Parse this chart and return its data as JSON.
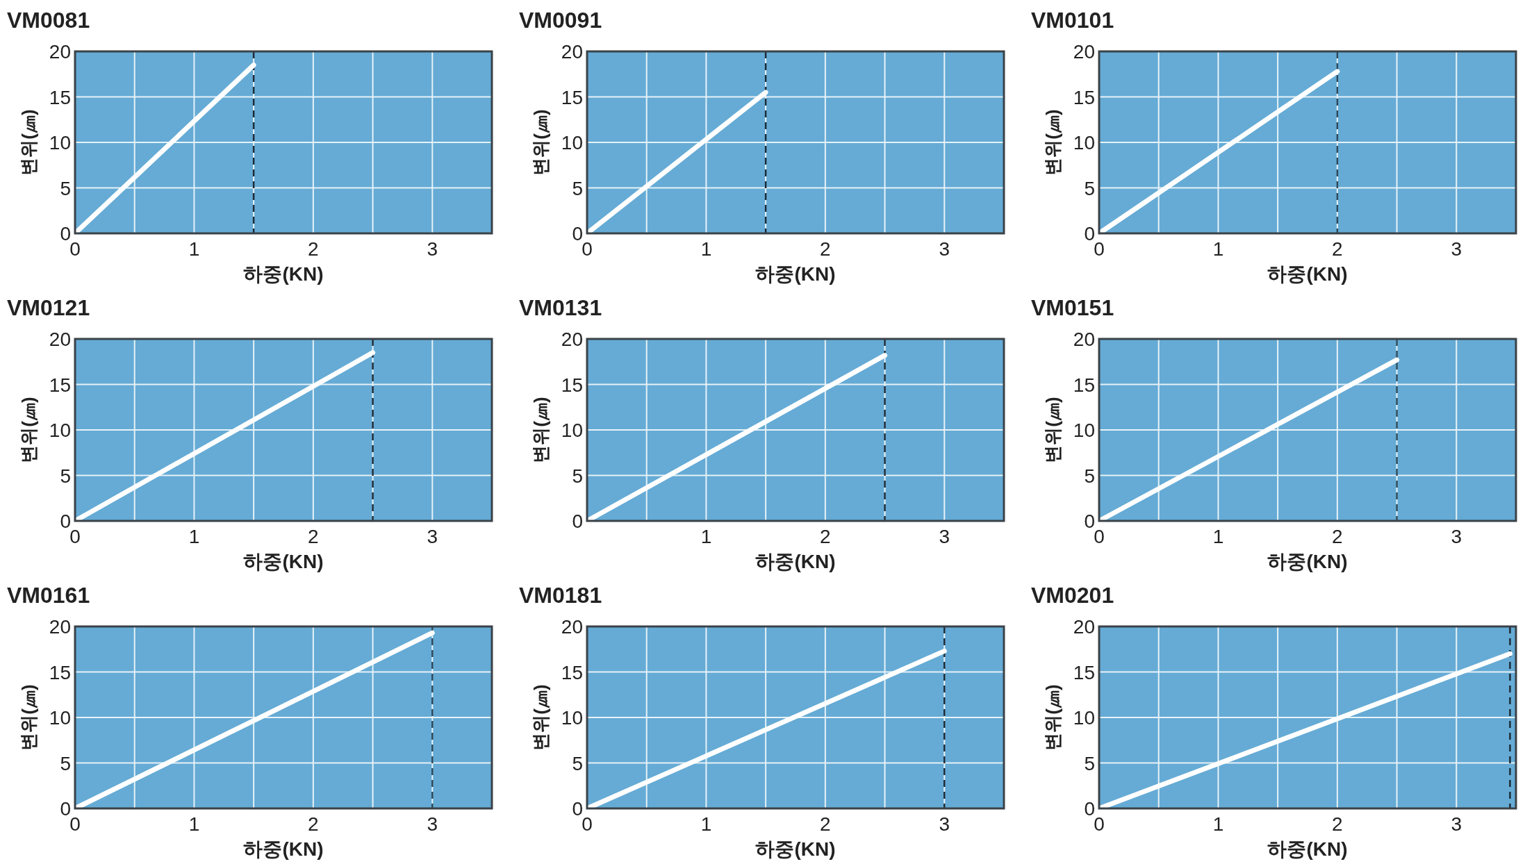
{
  "chart_data": [
    {
      "type": "line",
      "title": "VM0081",
      "xlabel": "하중(KN)",
      "ylabel": "변위(㎛)",
      "x": [
        0,
        1.5
      ],
      "series": [
        {
          "color": "#ffffff",
          "values": [
            0,
            18.5
          ]
        }
      ],
      "xlim": [
        0,
        3.5
      ],
      "ylim": [
        0,
        20
      ],
      "xticks": [
        0,
        {
          "value": 0.5,
          "label": null
        },
        1,
        {
          "value": 1.5,
          "label": null
        },
        2,
        {
          "value": 2.5,
          "label": null
        },
        3
      ],
      "yticks": [
        0,
        5,
        10,
        15,
        20
      ],
      "grid": true,
      "ref_lines": [
        {
          "axis": "x",
          "value": 1.5,
          "color": "#1c2b38",
          "line_style": "dashed"
        }
      ]
    },
    {
      "type": "line",
      "title": "VM0091",
      "xlabel": "하중(KN)",
      "ylabel": "변위(㎛)",
      "x": [
        0,
        1.5
      ],
      "series": [
        {
          "color": "#ffffff",
          "values": [
            0,
            15.5
          ]
        }
      ],
      "xlim": [
        0,
        3.5
      ],
      "ylim": [
        0,
        20
      ],
      "xticks": [
        0,
        {
          "value": 0.5,
          "label": null
        },
        1,
        {
          "value": 1.5,
          "label": null
        },
        2,
        {
          "value": 2.5,
          "label": null
        },
        3
      ],
      "yticks": [
        0,
        5,
        10,
        15,
        20
      ],
      "grid": true,
      "ref_lines": [
        {
          "axis": "x",
          "value": 1.5,
          "color": "#1c2b38",
          "line_style": "dashed"
        }
      ]
    },
    {
      "type": "line",
      "title": "VM0101",
      "xlabel": "하중(KN)",
      "ylabel": "변위(㎛)",
      "x": [
        0,
        2
      ],
      "series": [
        {
          "color": "#ffffff",
          "values": [
            0,
            17.8
          ]
        }
      ],
      "xlim": [
        0,
        3.5
      ],
      "ylim": [
        0,
        20
      ],
      "xticks": [
        0,
        {
          "value": 0.5,
          "label": null
        },
        1,
        {
          "value": 1.5,
          "label": null
        },
        2,
        {
          "value": 2.5,
          "label": null
        },
        3
      ],
      "yticks": [
        0,
        5,
        10,
        15,
        20
      ],
      "grid": true,
      "ref_lines": [
        {
          "axis": "x",
          "value": 2,
          "color": "#2a4a5e",
          "line_style": "dashed"
        }
      ]
    },
    {
      "type": "line",
      "title": "VM0121",
      "xlabel": "하중(KN)",
      "ylabel": "변위(㎛)",
      "x": [
        0,
        2.5
      ],
      "series": [
        {
          "color": "#ffffff",
          "values": [
            0,
            18.5
          ]
        }
      ],
      "xlim": [
        0,
        3.5
      ],
      "ylim": [
        0,
        20
      ],
      "xticks": [
        0,
        {
          "value": 0.5,
          "label": null
        },
        1,
        {
          "value": 1.5,
          "label": null
        },
        2,
        {
          "value": 2.5,
          "label": null
        },
        3
      ],
      "yticks": [
        0,
        5,
        10,
        15,
        20
      ],
      "grid": true,
      "ref_lines": [
        {
          "axis": "x",
          "value": 2.5,
          "color": "#1c2b38",
          "line_style": "dashed"
        }
      ]
    },
    {
      "type": "line",
      "title": "VM0131",
      "xlabel": "하중(KN)",
      "ylabel": "변위(㎛)",
      "x": [
        0,
        2.5
      ],
      "series": [
        {
          "color": "#ffffff",
          "values": [
            0,
            18.2
          ]
        }
      ],
      "xlim": [
        0,
        3.5
      ],
      "ylim": [
        0,
        20
      ],
      "xticks": [
        {
          "value": 0,
          "label": null
        },
        {
          "value": 0.5,
          "label": null
        },
        1,
        {
          "value": 1.5,
          "label": null
        },
        2,
        {
          "value": 2.5,
          "label": null
        },
        3
      ],
      "yticks": [
        0,
        5,
        10,
        15,
        20
      ],
      "grid": true,
      "ref_lines": [
        {
          "axis": "x",
          "value": 2.5,
          "color": "#1c2b38",
          "line_style": "dashed"
        }
      ]
    },
    {
      "type": "line",
      "title": "VM0151",
      "xlabel": "하중(KN)",
      "ylabel": "변위(㎛)",
      "x": [
        0,
        2.5
      ],
      "series": [
        {
          "color": "#ffffff",
          "values": [
            0,
            17.7
          ]
        }
      ],
      "xlim": [
        0,
        3.5
      ],
      "ylim": [
        0,
        20
      ],
      "xticks": [
        0,
        {
          "value": 0.5,
          "label": null
        },
        1,
        {
          "value": 1.5,
          "label": null
        },
        2,
        {
          "value": 2.5,
          "label": null
        },
        3
      ],
      "yticks": [
        0,
        5,
        10,
        15,
        20
      ],
      "grid": true,
      "ref_lines": [
        {
          "axis": "x",
          "value": 2.5,
          "color": "#2a4a5e",
          "line_style": "dashed"
        }
      ]
    },
    {
      "type": "line",
      "title": "VM0161",
      "xlabel": "하중(KN)",
      "ylabel": "변위(㎛)",
      "x": [
        0,
        3
      ],
      "series": [
        {
          "color": "#ffffff",
          "values": [
            0,
            19.3
          ]
        }
      ],
      "xlim": [
        0,
        3.5
      ],
      "ylim": [
        0,
        20
      ],
      "xticks": [
        0,
        {
          "value": 0.5,
          "label": null
        },
        1,
        {
          "value": 1.5,
          "label": null
        },
        2,
        {
          "value": 2.5,
          "label": null
        },
        3
      ],
      "yticks": [
        0,
        5,
        10,
        15,
        20
      ],
      "grid": true,
      "ref_lines": [
        {
          "axis": "x",
          "value": 3,
          "color": "#2a4a5e",
          "line_style": "dashed"
        }
      ]
    },
    {
      "type": "line",
      "title": "VM0181",
      "xlabel": "하중(KN)",
      "ylabel": "변위(㎛)",
      "x": [
        0,
        3
      ],
      "series": [
        {
          "color": "#ffffff",
          "values": [
            0,
            17.3
          ]
        }
      ],
      "xlim": [
        0,
        3.5
      ],
      "ylim": [
        0,
        20
      ],
      "xticks": [
        0,
        {
          "value": 0.5,
          "label": null
        },
        1,
        {
          "value": 1.5,
          "label": null
        },
        2,
        {
          "value": 2.5,
          "label": null
        },
        3
      ],
      "yticks": [
        0,
        5,
        10,
        15,
        20
      ],
      "grid": true,
      "ref_lines": [
        {
          "axis": "x",
          "value": 3,
          "color": "#1c2b38",
          "line_style": "dashed"
        }
      ]
    },
    {
      "type": "line",
      "title": "VM0201",
      "xlabel": "하중(KN)",
      "ylabel": "변위(㎛)",
      "x": [
        0,
        3.45
      ],
      "series": [
        {
          "color": "#ffffff",
          "values": [
            0,
            17
          ]
        }
      ],
      "xlim": [
        0,
        3.5
      ],
      "ylim": [
        0,
        20
      ],
      "xticks": [
        0,
        {
          "value": 0.5,
          "label": null
        },
        1,
        {
          "value": 1.5,
          "label": null
        },
        2,
        {
          "value": 2.5,
          "label": null
        },
        3
      ],
      "yticks": [
        0,
        5,
        10,
        15,
        20
      ],
      "grid": true,
      "ref_lines": [
        {
          "axis": "x",
          "value": 3.45,
          "color": "#1c2b38",
          "line_style": "dashed"
        }
      ]
    }
  ]
}
